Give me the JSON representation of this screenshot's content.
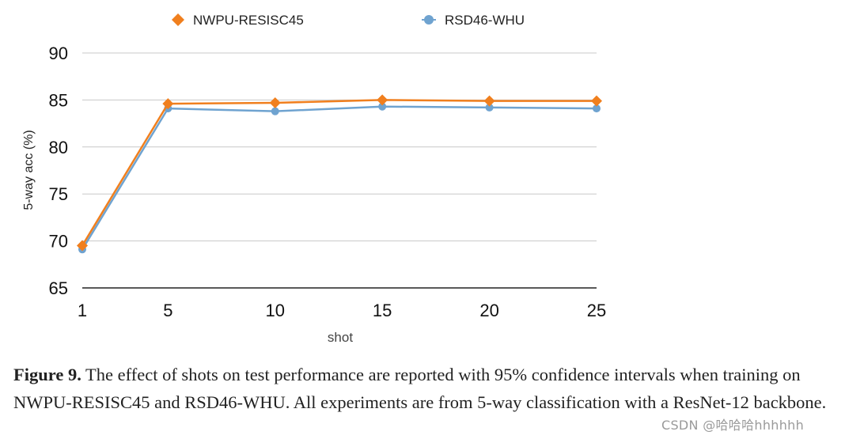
{
  "chart_data": {
    "type": "line",
    "title": "",
    "xlabel": "shot",
    "ylabel": "5-way acc (%)",
    "x": [
      1,
      5,
      10,
      15,
      20,
      25
    ],
    "x_tick_labels": [
      "1",
      "5",
      "10",
      "15",
      "20",
      "25"
    ],
    "ylim": [
      65,
      90
    ],
    "y_ticks": [
      65,
      70,
      75,
      80,
      85,
      90
    ],
    "y_tick_labels": [
      "65",
      "70",
      "75",
      "80",
      "85",
      "90"
    ],
    "grid": true,
    "legend_position": "top",
    "series": [
      {
        "name": "NWPU-RESISC45",
        "marker": "diamond",
        "color": "#f07f1e",
        "values": [
          69.5,
          84.6,
          84.7,
          85.0,
          84.9,
          84.9
        ]
      },
      {
        "name": "RSD46-WHU",
        "marker": "circle",
        "color": "#6fa3d0",
        "values": [
          69.1,
          84.1,
          83.8,
          84.3,
          84.2,
          84.1
        ]
      }
    ]
  },
  "caption": {
    "label": "Figure 9.",
    "text": "The effect of shots on test performance are reported with 95% confidence intervals when training on NWPU-RESISC45 and RSD46-WHU. All experiments are from 5-way classification with a ResNet-12 backbone."
  },
  "watermark": "CSDN @哈哈哈hhhhhh"
}
